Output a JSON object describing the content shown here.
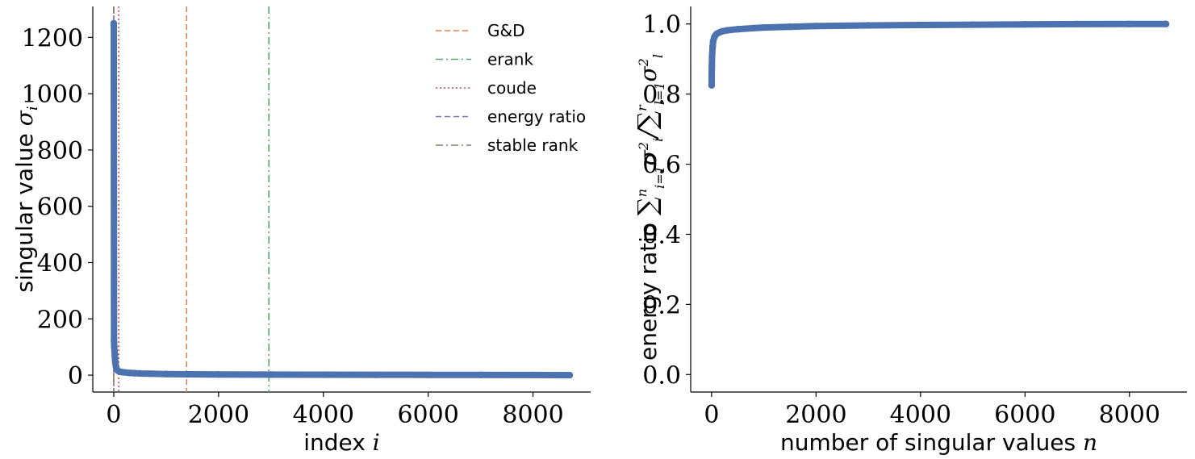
{
  "chart_data": [
    {
      "type": "scatter",
      "xlabel": "index",
      "xlabel_math": "i",
      "ylabel": "singular value",
      "ylabel_math": "σ",
      "ylabel_math_sub": "i",
      "xlim": [
        -400,
        9100
      ],
      "ylim": [
        -60,
        1310
      ],
      "xticks": [
        0,
        2000,
        4000,
        6000,
        8000
      ],
      "yticks": [
        0,
        200,
        400,
        600,
        800,
        1000,
        1200
      ],
      "grid": false,
      "legend_position": "top-right",
      "series": [
        {
          "name": "singular values",
          "color": "#4c72b0",
          "marker": "o",
          "x": [
            0,
            5,
            10,
            15,
            20,
            25,
            30,
            40,
            50,
            60,
            80,
            100,
            150,
            200,
            300,
            400,
            500,
            700,
            1000,
            1400,
            2000,
            3000,
            4000,
            5000,
            6000,
            7000,
            8000,
            8500,
            8700
          ],
          "y": [
            1250,
            120,
            100,
            85,
            70,
            55,
            45,
            32,
            25,
            20,
            16,
            13,
            11,
            10,
            8,
            7,
            6,
            5,
            4,
            3,
            2.5,
            2,
            1.5,
            1.2,
            1,
            0.8,
            0.5,
            0.3,
            0.1
          ]
        }
      ],
      "vlines": [
        {
          "name": "G&D",
          "x": 1390,
          "color": "#dd8452",
          "style": "dashed"
        },
        {
          "name": "erank",
          "x": 2960,
          "color": "#55a868",
          "style": "dashdot"
        },
        {
          "name": "coude",
          "x": 95,
          "color": "#c44e52",
          "style": "dotted"
        },
        {
          "name": "energy ratio",
          "x": 0,
          "color": "#8172b3",
          "style": "dashed"
        },
        {
          "name": "stable rank",
          "x": 0,
          "color": "#937860",
          "style": "dashdot"
        }
      ]
    },
    {
      "type": "scatter",
      "xlabel": "number of singular values",
      "xlabel_math": "n",
      "ylabel": "energy ratio",
      "ylabel_math": "Σ σ² / Σ σ²",
      "ylabel_parts": {
        "sum": "∑",
        "top_sup": "n",
        "top_sub": "i=1",
        "top_var": "σ",
        "top_var_sub": "i",
        "top_var_sup": "2",
        "slash": "/",
        "bottom_sup": "r",
        "bottom_sub": "l=1",
        "bottom_var": "σ",
        "bottom_var_sub": "l",
        "bottom_var_sup": "2"
      },
      "xlim": [
        -400,
        9100
      ],
      "ylim": [
        -0.05,
        1.05
      ],
      "xticks": [
        0,
        2000,
        4000,
        6000,
        8000
      ],
      "yticks": [
        0.0,
        0.2,
        0.4,
        0.6,
        0.8,
        1.0
      ],
      "grid": false,
      "series": [
        {
          "name": "energy ratio",
          "color": "#4c72b0",
          "marker": "o",
          "x": [
            1,
            2,
            5,
            10,
            20,
            30,
            50,
            75,
            100,
            150,
            200,
            300,
            500,
            800,
            1000,
            1500,
            2000,
            3000,
            4000,
            5000,
            6000,
            7000,
            8000,
            8700
          ],
          "y": [
            0.825,
            0.85,
            0.88,
            0.91,
            0.935,
            0.95,
            0.962,
            0.968,
            0.972,
            0.976,
            0.979,
            0.982,
            0.985,
            0.988,
            0.99,
            0.992,
            0.994,
            0.996,
            0.997,
            0.998,
            0.999,
            0.9995,
            0.9998,
            1.0
          ]
        }
      ]
    }
  ]
}
